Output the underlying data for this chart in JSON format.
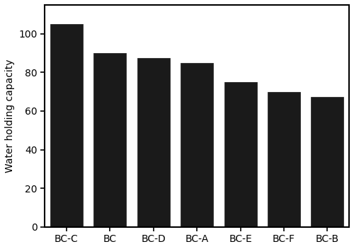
{
  "categories": [
    "BC-C",
    "BC",
    "BC-D",
    "BC-A",
    "BC-E",
    "BC-F",
    "BC-B"
  ],
  "values": [
    105,
    90,
    87.5,
    85,
    75,
    70,
    67.5
  ],
  "bar_color": "#1a1a1a",
  "ylabel": "Water holding capacity",
  "ylim": [
    0,
    115
  ],
  "yticks": [
    0,
    20,
    40,
    60,
    80,
    100
  ],
  "background_color": "#ffffff",
  "bar_width": 0.75,
  "edge_color": "#1a1a1a",
  "spine_linewidth": 1.5,
  "tick_fontsize": 10,
  "ylabel_fontsize": 10
}
